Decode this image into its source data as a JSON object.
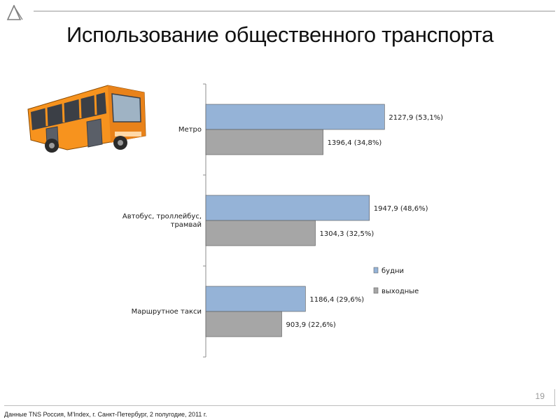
{
  "slide": {
    "title": "Использование общественного транспорта",
    "page_number": "19",
    "source_note": "Данные TNS Россия, M'Index, г. Санкт-Петербург, 2 полугодие, 2011 г."
  },
  "icons": {
    "logo": "a-triangle-logo-icon",
    "illustration": "orange-bus-icon"
  },
  "colors": {
    "weekday": "#95b3d7",
    "weekend": "#a6a6a6",
    "bus_body": "#f7931e"
  },
  "chart_data": {
    "type": "bar",
    "orientation": "horizontal",
    "categories": [
      "Метро",
      "Автобус, троллейбус, трамвай",
      "Маршрутное такси"
    ],
    "series": [
      {
        "name": "будни",
        "values": [
          2127.9,
          1947.9,
          1186.4
        ],
        "labels": [
          "2127,9 (53,1%)",
          "1947,9 (48,6%)",
          "1186,4 (29,6%)"
        ]
      },
      {
        "name": "выходные",
        "values": [
          1396.4,
          1304.3,
          903.9
        ],
        "labels": [
          "1396,4 (34,8%)",
          "1304,3 (32,5%)",
          "903,9 (22,6%)"
        ]
      }
    ],
    "xlim": [
      0,
      4000
    ],
    "grid": false,
    "legend_position": "right"
  }
}
